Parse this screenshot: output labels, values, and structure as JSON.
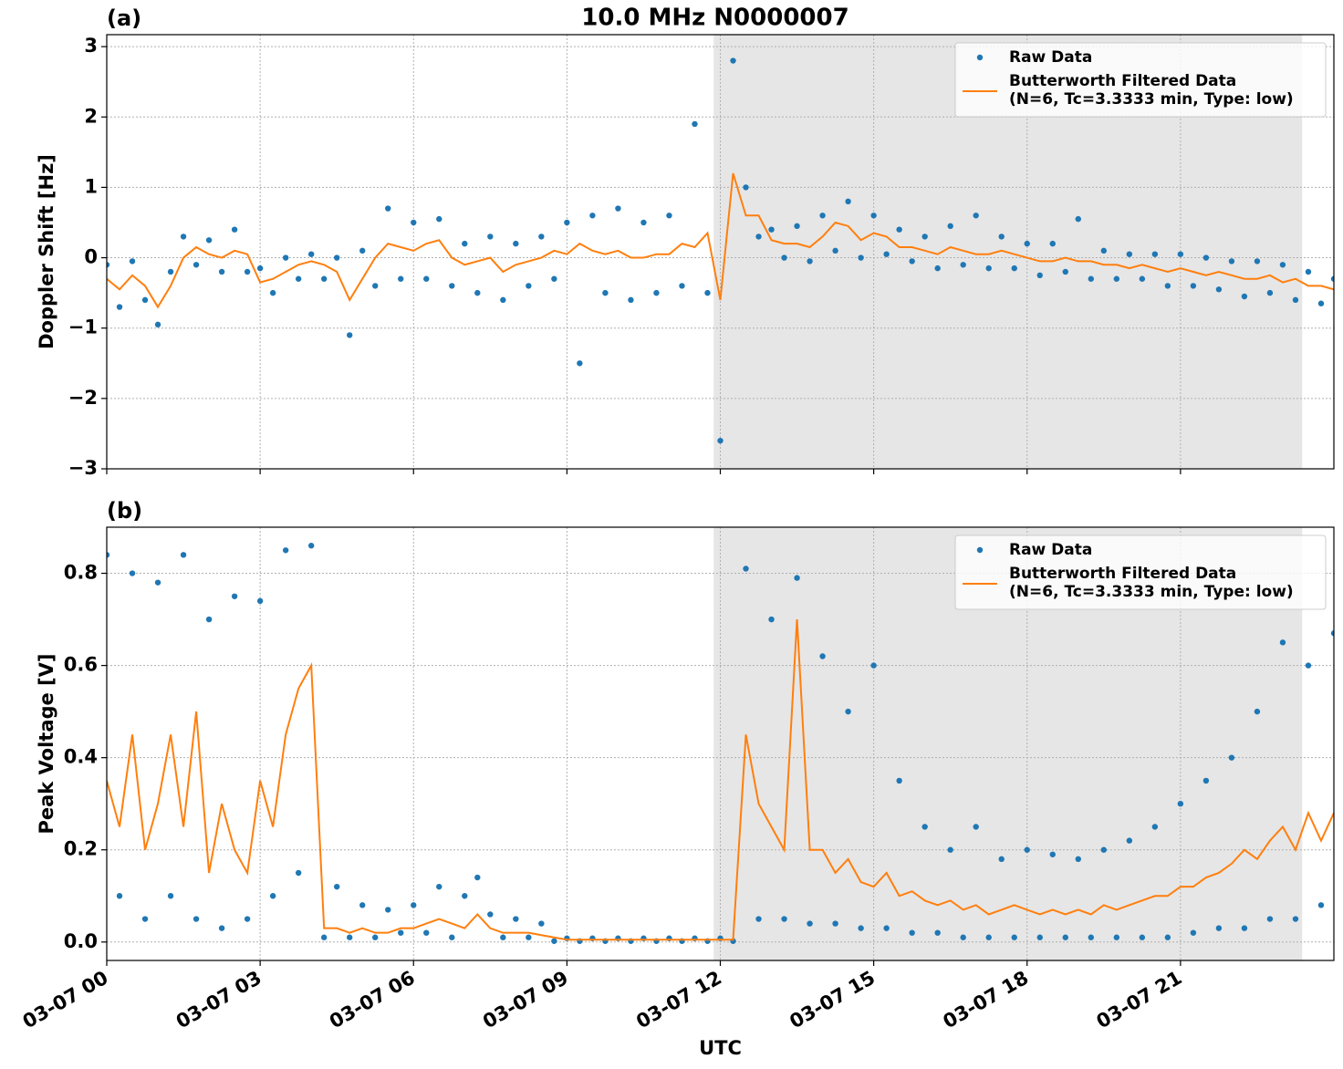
{
  "chart_data": [
    {
      "type": "scatter-line",
      "title": "10.0 MHz N0000007",
      "panel_label": "(a)",
      "y_label": "Doppler Shift [Hz]",
      "xlim": [
        0,
        24
      ],
      "ylim": [
        -3,
        3.17
      ],
      "grid": true,
      "legend": "upper right",
      "shade": {
        "x": [
          11.87,
          23.38
        ],
        "color": "#e6e6e6"
      },
      "yticks": [
        {
          "value": -3,
          "label": "−3"
        },
        {
          "value": -2,
          "label": "−2"
        },
        {
          "value": -1,
          "label": "−1"
        },
        0,
        1,
        2,
        3
      ],
      "x": [
        0,
        0.25,
        0.5,
        0.75,
        1,
        1.25,
        1.5,
        1.75,
        2,
        2.25,
        2.5,
        2.75,
        3,
        3.25,
        3.5,
        3.75,
        4,
        4.25,
        4.5,
        4.75,
        5,
        5.25,
        5.5,
        5.75,
        6,
        6.25,
        6.5,
        6.75,
        7,
        7.25,
        7.5,
        7.75,
        8,
        8.25,
        8.5,
        8.75,
        9,
        9.25,
        9.5,
        9.75,
        10,
        10.25,
        10.5,
        10.75,
        11,
        11.25,
        11.5,
        11.75,
        12,
        12.25,
        12.5,
        12.75,
        13,
        13.25,
        13.5,
        13.75,
        14,
        14.25,
        14.5,
        14.75,
        15,
        15.25,
        15.5,
        15.75,
        16,
        16.25,
        16.5,
        16.75,
        17,
        17.25,
        17.5,
        17.75,
        18,
        18.25,
        18.5,
        18.75,
        19,
        19.25,
        19.5,
        19.75,
        20,
        20.25,
        20.5,
        20.75,
        21,
        21.25,
        21.5,
        21.75,
        22,
        22.25,
        22.5,
        22.75,
        23,
        23.25,
        23.5,
        23.75,
        24
      ],
      "series": [
        {
          "name": "Raw Data",
          "kind": "points",
          "color": "#1f77b4",
          "values": [
            -0.1,
            -0.7,
            -0.05,
            -0.6,
            -0.95,
            -0.2,
            0.3,
            -0.1,
            0.25,
            -0.2,
            0.4,
            -0.2,
            -0.15,
            -0.5,
            0.0,
            -0.3,
            0.05,
            -0.3,
            0.0,
            -1.1,
            0.1,
            -0.4,
            0.7,
            -0.3,
            0.5,
            -0.3,
            0.55,
            -0.4,
            0.2,
            -0.5,
            0.3,
            -0.6,
            0.2,
            -0.4,
            0.3,
            -0.3,
            0.5,
            -1.5,
            0.6,
            -0.5,
            0.7,
            -0.6,
            0.5,
            -0.5,
            0.6,
            -0.4,
            1.9,
            -0.5,
            -2.6,
            2.8,
            1.0,
            0.3,
            0.4,
            0.0,
            0.45,
            -0.05,
            0.6,
            0.1,
            0.8,
            0.0,
            0.6,
            0.05,
            0.4,
            -0.05,
            0.3,
            -0.15,
            0.45,
            -0.1,
            0.6,
            -0.15,
            0.3,
            -0.15,
            0.2,
            -0.25,
            0.2,
            -0.2,
            0.55,
            -0.3,
            0.1,
            -0.3,
            0.05,
            -0.3,
            0.05,
            -0.4,
            0.05,
            -0.4,
            0.0,
            -0.45,
            -0.05,
            -0.55,
            -0.05,
            -0.5,
            -0.1,
            -0.6,
            -0.2,
            -0.65,
            -0.3
          ]
        },
        {
          "name": "Butterworth Filtered Data\n(N=6, Tc=3.3333 min, Type: low)",
          "kind": "line",
          "color": "#ff7f0e",
          "values": [
            -0.3,
            -0.45,
            -0.25,
            -0.4,
            -0.7,
            -0.4,
            0.0,
            0.15,
            0.05,
            0.0,
            0.1,
            0.05,
            -0.35,
            -0.3,
            -0.2,
            -0.1,
            -0.05,
            -0.1,
            -0.2,
            -0.6,
            -0.3,
            0.0,
            0.2,
            0.15,
            0.1,
            0.2,
            0.25,
            0.0,
            -0.1,
            -0.05,
            0.0,
            -0.2,
            -0.1,
            -0.05,
            0.0,
            0.1,
            0.05,
            0.2,
            0.1,
            0.05,
            0.1,
            0.0,
            0.0,
            0.05,
            0.05,
            0.2,
            0.15,
            0.35,
            -0.6,
            1.2,
            0.6,
            0.6,
            0.25,
            0.2,
            0.2,
            0.15,
            0.3,
            0.5,
            0.45,
            0.25,
            0.35,
            0.3,
            0.15,
            0.15,
            0.1,
            0.05,
            0.15,
            0.1,
            0.05,
            0.05,
            0.1,
            0.05,
            0.0,
            -0.05,
            -0.05,
            0.0,
            -0.05,
            -0.05,
            -0.1,
            -0.1,
            -0.15,
            -0.1,
            -0.15,
            -0.2,
            -0.15,
            -0.2,
            -0.25,
            -0.2,
            -0.25,
            -0.3,
            -0.3,
            -0.25,
            -0.35,
            -0.3,
            -0.4,
            -0.4,
            -0.45
          ]
        }
      ]
    },
    {
      "type": "scatter-line",
      "panel_label": "(b)",
      "y_label": "Peak Voltage [V]",
      "x_label": "UTC",
      "xlim": [
        0,
        24
      ],
      "ylim": [
        -0.04,
        0.9
      ],
      "grid": true,
      "legend": "upper right",
      "shade": {
        "x": [
          11.87,
          23.38
        ],
        "color": "#e6e6e6"
      },
      "yticks": [
        {
          "value": 0,
          "label": "0.0"
        },
        0.2,
        0.4,
        0.6,
        0.8
      ],
      "xticks": [
        {
          "value": 0,
          "label": "03-07 00"
        },
        {
          "value": 3,
          "label": "03-07 03"
        },
        {
          "value": 6,
          "label": "03-07 06"
        },
        {
          "value": 9,
          "label": "03-07 09"
        },
        {
          "value": 12,
          "label": "03-07 12"
        },
        {
          "value": 15,
          "label": "03-07 15"
        },
        {
          "value": 18,
          "label": "03-07 18"
        },
        {
          "value": 21,
          "label": "03-07 21"
        }
      ],
      "x": [
        0,
        0.25,
        0.5,
        0.75,
        1,
        1.25,
        1.5,
        1.75,
        2,
        2.25,
        2.5,
        2.75,
        3,
        3.25,
        3.5,
        3.75,
        4,
        4.25,
        4.5,
        4.75,
        5,
        5.25,
        5.5,
        5.75,
        6,
        6.25,
        6.5,
        6.75,
        7,
        7.25,
        7.5,
        7.75,
        8,
        8.25,
        8.5,
        8.75,
        9,
        9.25,
        9.5,
        9.75,
        10,
        10.25,
        10.5,
        10.75,
        11,
        11.25,
        11.5,
        11.75,
        12,
        12.25,
        12.5,
        12.75,
        13,
        13.25,
        13.5,
        13.75,
        14,
        14.25,
        14.5,
        14.75,
        15,
        15.25,
        15.5,
        15.75,
        16,
        16.25,
        16.5,
        16.75,
        17,
        17.25,
        17.5,
        17.75,
        18,
        18.25,
        18.5,
        18.75,
        19,
        19.25,
        19.5,
        19.75,
        20,
        20.25,
        20.5,
        20.75,
        21,
        21.25,
        21.5,
        21.75,
        22,
        22.25,
        22.5,
        22.75,
        23,
        23.25,
        23.5,
        23.75,
        24
      ],
      "series": [
        {
          "name": "Raw Data",
          "kind": "points",
          "color": "#1f77b4",
          "values": [
            0.84,
            0.1,
            0.8,
            0.05,
            0.78,
            0.1,
            0.84,
            0.05,
            0.7,
            0.03,
            0.75,
            0.05,
            0.74,
            0.1,
            0.85,
            0.15,
            0.86,
            0.01,
            0.12,
            0.01,
            0.08,
            0.01,
            0.07,
            0.02,
            0.08,
            0.02,
            0.12,
            0.01,
            0.1,
            0.14,
            0.06,
            0.01,
            0.05,
            0.01,
            0.04,
            0.002,
            0.008,
            0.002,
            0.008,
            0.002,
            0.008,
            0.002,
            0.008,
            0.002,
            0.008,
            0.002,
            0.008,
            0.002,
            0.008,
            0.002,
            0.81,
            0.05,
            0.7,
            0.05,
            0.79,
            0.04,
            0.62,
            0.04,
            0.5,
            0.03,
            0.6,
            0.03,
            0.35,
            0.02,
            0.25,
            0.02,
            0.2,
            0.01,
            0.25,
            0.01,
            0.18,
            0.01,
            0.2,
            0.01,
            0.19,
            0.01,
            0.18,
            0.01,
            0.2,
            0.01,
            0.22,
            0.01,
            0.25,
            0.01,
            0.3,
            0.02,
            0.35,
            0.03,
            0.4,
            0.03,
            0.5,
            0.05,
            0.65,
            0.05,
            0.6,
            0.08,
            0.67
          ]
        },
        {
          "name": "Butterworth Filtered Data\n(N=6, Tc=3.3333 min, Type: low)",
          "kind": "line",
          "color": "#ff7f0e",
          "values": [
            0.35,
            0.25,
            0.45,
            0.2,
            0.3,
            0.45,
            0.25,
            0.5,
            0.15,
            0.3,
            0.2,
            0.15,
            0.35,
            0.25,
            0.45,
            0.55,
            0.6,
            0.03,
            0.03,
            0.02,
            0.03,
            0.02,
            0.02,
            0.03,
            0.03,
            0.04,
            0.05,
            0.04,
            0.03,
            0.06,
            0.03,
            0.02,
            0.02,
            0.02,
            0.015,
            0.01,
            0.005,
            0.005,
            0.005,
            0.005,
            0.005,
            0.005,
            0.005,
            0.005,
            0.005,
            0.005,
            0.005,
            0.005,
            0.005,
            0.005,
            0.45,
            0.3,
            0.25,
            0.2,
            0.7,
            0.2,
            0.2,
            0.15,
            0.18,
            0.13,
            0.12,
            0.15,
            0.1,
            0.11,
            0.09,
            0.08,
            0.09,
            0.07,
            0.08,
            0.06,
            0.07,
            0.08,
            0.07,
            0.06,
            0.07,
            0.06,
            0.07,
            0.06,
            0.08,
            0.07,
            0.08,
            0.09,
            0.1,
            0.1,
            0.12,
            0.12,
            0.14,
            0.15,
            0.17,
            0.2,
            0.18,
            0.22,
            0.25,
            0.2,
            0.28,
            0.22,
            0.28
          ]
        }
      ]
    }
  ]
}
